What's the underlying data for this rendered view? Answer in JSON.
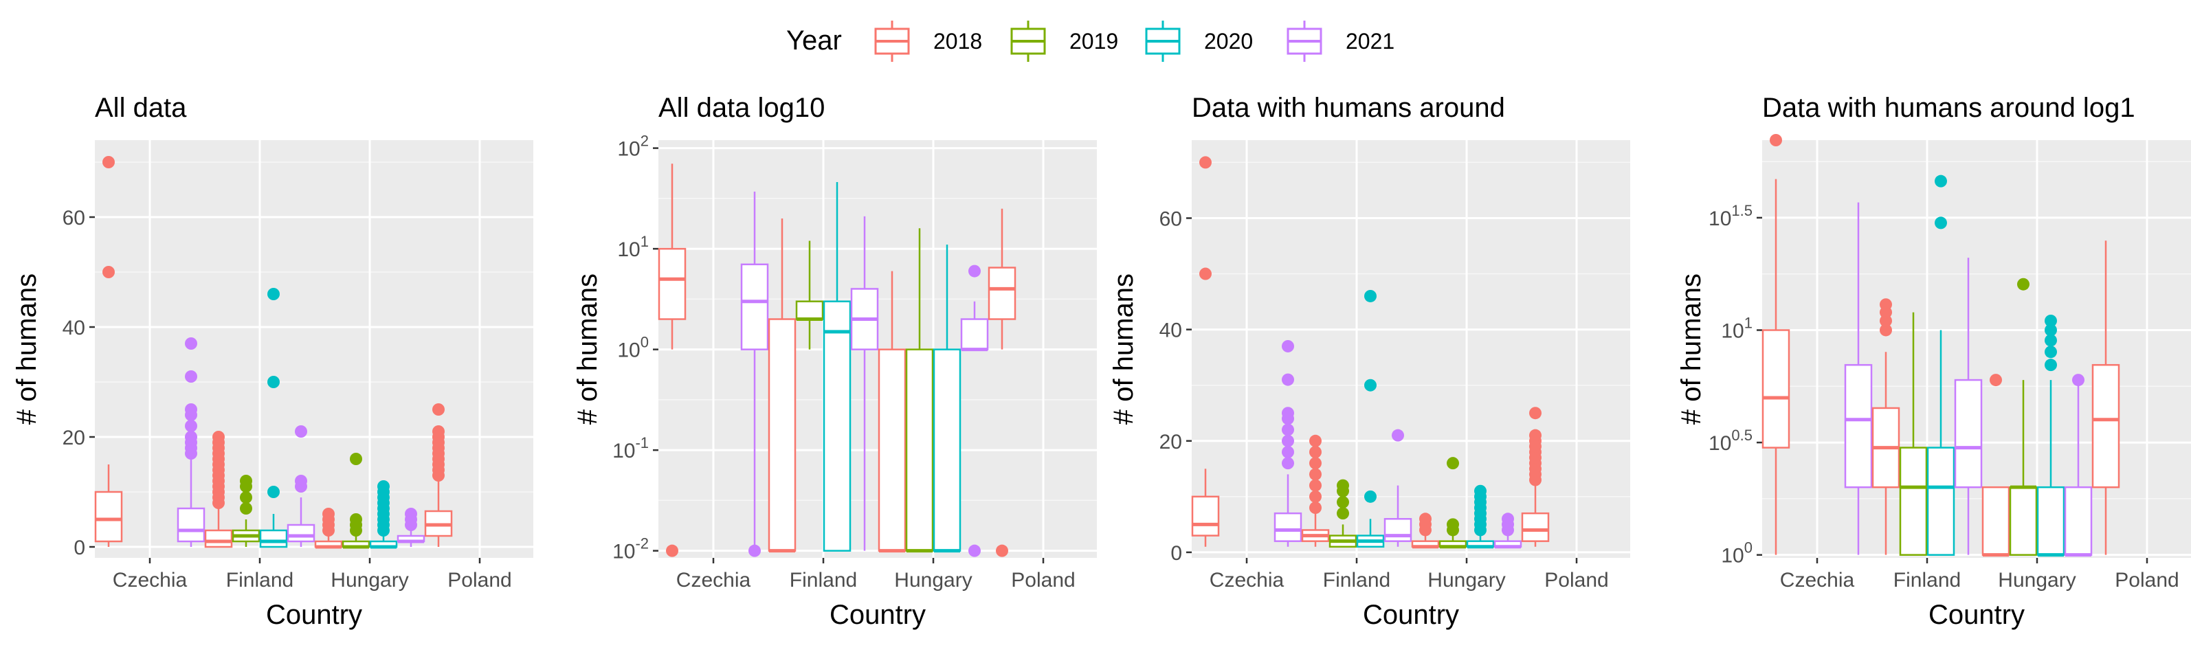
{
  "legend": {
    "title": "Year",
    "placement": "top",
    "items": [
      {
        "label": "2018",
        "color": "#F8766D"
      },
      {
        "label": "2019",
        "color": "#7CAE00"
      },
      {
        "label": "2020",
        "color": "#00BFC4"
      },
      {
        "label": "2021",
        "color": "#C77CFF"
      }
    ]
  },
  "chart_data": [
    {
      "type": "boxplot",
      "title": "All data",
      "xlabel": "Country",
      "ylabel": "# of humans",
      "scale": "linear",
      "ylim": [
        -2,
        74
      ],
      "yticks": [
        {
          "value": 0,
          "label": "0"
        },
        {
          "value": 20,
          "label": "20"
        },
        {
          "value": 40,
          "label": "40"
        },
        {
          "value": 60,
          "label": "60"
        }
      ],
      "grid": true,
      "categories": [
        "Czechia",
        "Finland",
        "Hungary",
        "Poland"
      ],
      "boxes": [
        {
          "category": "Czechia",
          "series": "2018",
          "min": 0,
          "q1": 1,
          "median": 5,
          "q3": 10,
          "max": 15,
          "outliers": [
            50,
            70
          ]
        },
        {
          "category": "Czechia",
          "series": "2021",
          "min": 0,
          "q1": 1,
          "median": 3,
          "q3": 7,
          "max": 16,
          "outliers": [
            17,
            18,
            19,
            20,
            22,
            24,
            25,
            31,
            37
          ]
        },
        {
          "category": "Finland",
          "series": "2018",
          "min": 0,
          "q1": 0,
          "median": 1,
          "q3": 3,
          "max": 7,
          "outliers": [
            8,
            9,
            10,
            11,
            12,
            13,
            14,
            15,
            16,
            17,
            18,
            19,
            20
          ]
        },
        {
          "category": "Finland",
          "series": "2019",
          "min": 0,
          "q1": 1,
          "median": 2,
          "q3": 3,
          "max": 5,
          "outliers": [
            7,
            9,
            11,
            12
          ]
        },
        {
          "category": "Finland",
          "series": "2020",
          "min": 0,
          "q1": 0,
          "median": 1,
          "q3": 3,
          "max": 6,
          "outliers": [
            10,
            30,
            46
          ]
        },
        {
          "category": "Finland",
          "series": "2021",
          "min": 0,
          "q1": 1,
          "median": 2,
          "q3": 4,
          "max": 9,
          "outliers": [
            11,
            12,
            21
          ]
        },
        {
          "category": "Hungary",
          "series": "2018",
          "min": 0,
          "q1": 0,
          "median": 0,
          "q3": 1,
          "max": 2,
          "outliers": [
            3,
            4,
            5,
            6
          ]
        },
        {
          "category": "Hungary",
          "series": "2019",
          "min": 0,
          "q1": 0,
          "median": 0,
          "q3": 1,
          "max": 2,
          "outliers": [
            3,
            4,
            5,
            16
          ]
        },
        {
          "category": "Hungary",
          "series": "2020",
          "min": 0,
          "q1": 0,
          "median": 0,
          "q3": 1,
          "max": 2,
          "outliers": [
            3,
            4,
            5,
            6,
            7,
            8,
            9,
            10,
            11
          ]
        },
        {
          "category": "Hungary",
          "series": "2021",
          "min": 0,
          "q1": 1,
          "median": 1,
          "q3": 2,
          "max": 3,
          "outliers": [
            4,
            5,
            6
          ]
        },
        {
          "category": "Poland",
          "series": "2018",
          "min": 0,
          "q1": 2,
          "median": 4,
          "q3": 6.5,
          "max": 12,
          "outliers": [
            13,
            14,
            15,
            16,
            17,
            18,
            19,
            20,
            21,
            25
          ]
        }
      ]
    },
    {
      "type": "boxplot",
      "title": "All data log10",
      "xlabel": "Country",
      "ylabel": "# of humans",
      "scale": "log10",
      "ylim": [
        0.0085,
        120
      ],
      "yticks": [
        {
          "value": 0.01,
          "base": "10",
          "exp": "-2"
        },
        {
          "value": 0.1,
          "base": "10",
          "exp": "-1"
        },
        {
          "value": 1,
          "base": "10",
          "exp": "0"
        },
        {
          "value": 10,
          "base": "10",
          "exp": "1"
        },
        {
          "value": 100,
          "base": "10",
          "exp": "2"
        }
      ],
      "grid": true,
      "categories": [
        "Czechia",
        "Finland",
        "Hungary",
        "Poland"
      ],
      "boxes": [
        {
          "category": "Czechia",
          "series": "2018",
          "min": 1,
          "q1": 2,
          "median": 5,
          "q3": 10,
          "max": 70,
          "outliers": [
            0.01
          ]
        },
        {
          "category": "Czechia",
          "series": "2021",
          "min": 0.01,
          "q1": 1,
          "median": 3,
          "q3": 7,
          "max": 37,
          "outliers": [
            0.01
          ]
        },
        {
          "category": "Finland",
          "series": "2018",
          "min": 0.01,
          "q1": 0.01,
          "median": 0.01,
          "q3": 2,
          "max": 20,
          "outliers": []
        },
        {
          "category": "Finland",
          "series": "2019",
          "min": 1,
          "q1": 2,
          "median": 2,
          "q3": 3,
          "max": 12,
          "outliers": []
        },
        {
          "category": "Finland",
          "series": "2020",
          "min": 0.01,
          "q1": 0.01,
          "median": 1.5,
          "q3": 3,
          "max": 46,
          "outliers": []
        },
        {
          "category": "Finland",
          "series": "2021",
          "min": 0.01,
          "q1": 1,
          "median": 2,
          "q3": 4,
          "max": 21,
          "outliers": []
        },
        {
          "category": "Hungary",
          "series": "2018",
          "min": 0.01,
          "q1": 0.01,
          "median": 0.01,
          "q3": 1,
          "max": 6,
          "outliers": []
        },
        {
          "category": "Hungary",
          "series": "2019",
          "min": 0.01,
          "q1": 0.01,
          "median": 0.01,
          "q3": 1,
          "max": 16,
          "outliers": []
        },
        {
          "category": "Hungary",
          "series": "2020",
          "min": 0.01,
          "q1": 0.01,
          "median": 0.01,
          "q3": 1,
          "max": 11,
          "outliers": []
        },
        {
          "category": "Hungary",
          "series": "2021",
          "min": 1,
          "q1": 1,
          "median": 1,
          "q3": 2,
          "max": 3,
          "outliers": [
            0.01,
            6
          ]
        },
        {
          "category": "Poland",
          "series": "2018",
          "min": 1,
          "q1": 2,
          "median": 4,
          "q3": 6.5,
          "max": 25,
          "outliers": [
            0.01
          ]
        }
      ]
    },
    {
      "type": "boxplot",
      "title": "Data with humans around",
      "xlabel": "Country",
      "ylabel": "# of humans",
      "scale": "linear",
      "ylim": [
        -1,
        74
      ],
      "yticks": [
        {
          "value": 0,
          "label": "0"
        },
        {
          "value": 20,
          "label": "20"
        },
        {
          "value": 40,
          "label": "40"
        },
        {
          "value": 60,
          "label": "60"
        }
      ],
      "grid": true,
      "categories": [
        "Czechia",
        "Finland",
        "Hungary",
        "Poland"
      ],
      "boxes": [
        {
          "category": "Czechia",
          "series": "2018",
          "min": 1,
          "q1": 3,
          "median": 5,
          "q3": 10,
          "max": 15,
          "outliers": [
            50,
            70
          ]
        },
        {
          "category": "Czechia",
          "series": "2021",
          "min": 1,
          "q1": 2,
          "median": 4,
          "q3": 7,
          "max": 14,
          "outliers": [
            16,
            18,
            20,
            22,
            24,
            25,
            31,
            37
          ]
        },
        {
          "category": "Finland",
          "series": "2018",
          "min": 1,
          "q1": 2,
          "median": 3,
          "q3": 4,
          "max": 7,
          "outliers": [
            8,
            10,
            12,
            14,
            16,
            18,
            20
          ]
        },
        {
          "category": "Finland",
          "series": "2019",
          "min": 1,
          "q1": 1,
          "median": 2,
          "q3": 3,
          "max": 5,
          "outliers": [
            7,
            9,
            11,
            12
          ]
        },
        {
          "category": "Finland",
          "series": "2020",
          "min": 1,
          "q1": 1,
          "median": 2,
          "q3": 3,
          "max": 6,
          "outliers": [
            10,
            30,
            46
          ]
        },
        {
          "category": "Finland",
          "series": "2021",
          "min": 1,
          "q1": 2,
          "median": 3,
          "q3": 6,
          "max": 12,
          "outliers": [
            21
          ]
        },
        {
          "category": "Hungary",
          "series": "2018",
          "min": 1,
          "q1": 1,
          "median": 1,
          "q3": 2,
          "max": 3,
          "outliers": [
            4,
            5,
            6
          ]
        },
        {
          "category": "Hungary",
          "series": "2019",
          "min": 1,
          "q1": 1,
          "median": 1,
          "q3": 2,
          "max": 3,
          "outliers": [
            4,
            5,
            16
          ]
        },
        {
          "category": "Hungary",
          "series": "2020",
          "min": 1,
          "q1": 1,
          "median": 1,
          "q3": 2,
          "max": 3,
          "outliers": [
            4,
            5,
            6,
            7,
            8,
            9,
            10,
            11
          ]
        },
        {
          "category": "Hungary",
          "series": "2021",
          "min": 1,
          "q1": 1,
          "median": 1,
          "q3": 2,
          "max": 3,
          "outliers": [
            4,
            5,
            6
          ]
        },
        {
          "category": "Poland",
          "series": "2018",
          "min": 1,
          "q1": 2,
          "median": 4,
          "q3": 7,
          "max": 12,
          "outliers": [
            13,
            14,
            15,
            16,
            17,
            18,
            19,
            20,
            21,
            25
          ]
        }
      ]
    },
    {
      "type": "boxplot",
      "title": "Data with humans around log1",
      "xlabel": "Country",
      "ylabel": "# of humans",
      "scale": "log10",
      "ylim": [
        0.97,
        70
      ],
      "yticks": [
        {
          "value": 1,
          "base": "10",
          "exp": "0"
        },
        {
          "value": 3.1623,
          "base": "10",
          "exp": "0.5"
        },
        {
          "value": 10,
          "base": "10",
          "exp": "1"
        },
        {
          "value": 31.623,
          "base": "10",
          "exp": "1.5"
        }
      ],
      "grid": true,
      "categories": [
        "Czechia",
        "Finland",
        "Hungary",
        "Poland"
      ],
      "boxes": [
        {
          "category": "Czechia",
          "series": "2018",
          "min": 1,
          "q1": 3,
          "median": 5,
          "q3": 10,
          "max": 47,
          "outliers": [
            70
          ]
        },
        {
          "category": "Czechia",
          "series": "2021",
          "min": 1,
          "q1": 2,
          "median": 4,
          "q3": 7,
          "max": 37,
          "outliers": []
        },
        {
          "category": "Finland",
          "series": "2018",
          "min": 1,
          "q1": 2,
          "median": 3,
          "q3": 4.5,
          "max": 8,
          "outliers": [
            10,
            11,
            12,
            13
          ]
        },
        {
          "category": "Finland",
          "series": "2019",
          "min": 1,
          "q1": 1,
          "median": 2,
          "q3": 3,
          "max": 12,
          "outliers": []
        },
        {
          "category": "Finland",
          "series": "2020",
          "min": 1,
          "q1": 1,
          "median": 2,
          "q3": 3,
          "max": 10,
          "outliers": [
            30,
            46
          ]
        },
        {
          "category": "Finland",
          "series": "2021",
          "min": 1,
          "q1": 2,
          "median": 3,
          "q3": 6,
          "max": 21,
          "outliers": []
        },
        {
          "category": "Hungary",
          "series": "2018",
          "min": 1,
          "q1": 1,
          "median": 1,
          "q3": 2,
          "max": 2,
          "outliers": [
            6
          ]
        },
        {
          "category": "Hungary",
          "series": "2019",
          "min": 1,
          "q1": 1,
          "median": 2,
          "q3": 2,
          "max": 6,
          "outliers": [
            16
          ]
        },
        {
          "category": "Hungary",
          "series": "2020",
          "min": 1,
          "q1": 1,
          "median": 1,
          "q3": 2,
          "max": 6,
          "outliers": [
            7,
            8,
            9,
            10,
            11
          ]
        },
        {
          "category": "Hungary",
          "series": "2021",
          "min": 1,
          "q1": 1,
          "median": 1,
          "q3": 2,
          "max": 6,
          "outliers": [
            6
          ]
        },
        {
          "category": "Poland",
          "series": "2018",
          "min": 1,
          "q1": 2,
          "median": 4,
          "q3": 7,
          "max": 25,
          "outliers": []
        }
      ]
    }
  ]
}
